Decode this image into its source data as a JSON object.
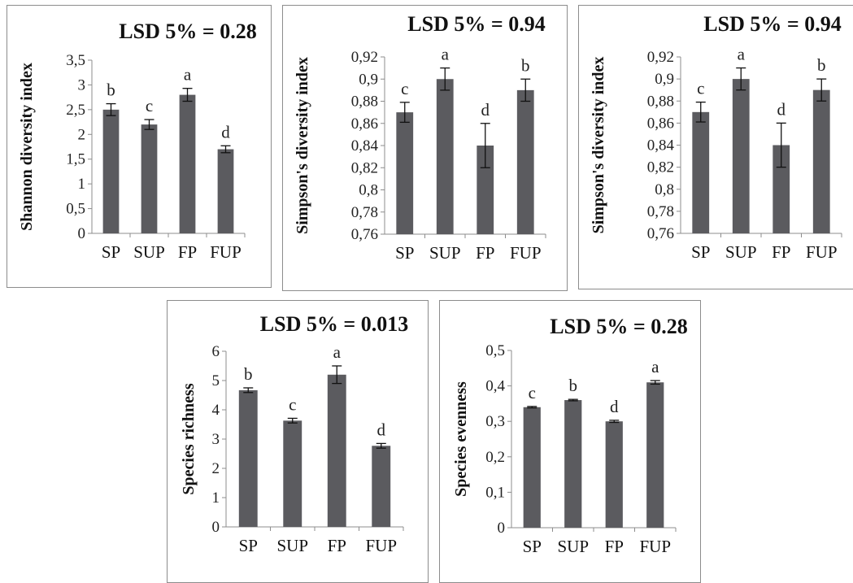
{
  "colors": {
    "bar": "#5b5b5f",
    "axis": "#8c8c8c",
    "text": "#111111"
  },
  "chart_data": [
    {
      "type": "bar",
      "title": "LSD 5% =  0.28",
      "ylabel": "Shannon diversity index",
      "categories": [
        "SP",
        "SUP",
        "FP",
        "FUP"
      ],
      "values": [
        2.5,
        2.2,
        2.8,
        1.7
      ],
      "errors": [
        0.12,
        0.1,
        0.13,
        0.07
      ],
      "letters": [
        "b",
        "c",
        "a",
        "d"
      ],
      "ylim": [
        0,
        3.5
      ],
      "yticks": [
        "0",
        "0,5",
        "1",
        "1,5",
        "2",
        "2,5",
        "3",
        "3,5"
      ]
    },
    {
      "type": "bar",
      "title": "LSD 5% =  0.94",
      "ylabel": "Simpson's diversity index",
      "categories": [
        "SP",
        "SUP",
        "FP",
        "FUP"
      ],
      "values": [
        0.87,
        0.9,
        0.84,
        0.89
      ],
      "errors": [
        0.009,
        0.01,
        0.02,
        0.01
      ],
      "letters": [
        "c",
        "a",
        "d",
        "b"
      ],
      "ylim": [
        0.76,
        0.92
      ],
      "yticks": [
        "0,76",
        "0,78",
        "0,8",
        "0,82",
        "0,84",
        "0,86",
        "0,88",
        "0,9",
        "0,92"
      ]
    },
    {
      "type": "bar",
      "title": "LSD 5% =  0.94",
      "ylabel": "Simpson's diversity index",
      "categories": [
        "SP",
        "SUP",
        "FP",
        "FUP"
      ],
      "values": [
        0.87,
        0.9,
        0.84,
        0.89
      ],
      "errors": [
        0.009,
        0.01,
        0.02,
        0.01
      ],
      "letters": [
        "c",
        "a",
        "d",
        "b"
      ],
      "ylim": [
        0.76,
        0.92
      ],
      "yticks": [
        "0,76",
        "0,78",
        "0,8",
        "0,82",
        "0,84",
        "0,86",
        "0,88",
        "0,9",
        "0,92"
      ]
    },
    {
      "type": "bar",
      "title": "LSD 5% =  0.013",
      "ylabel": "Species  richness",
      "categories": [
        "SP",
        "SUP",
        "FP",
        "FUP"
      ],
      "values": [
        4.67,
        3.63,
        5.2,
        2.77
      ],
      "errors": [
        0.08,
        0.08,
        0.3,
        0.08
      ],
      "letters": [
        "b",
        "c",
        "a",
        "d"
      ],
      "ylim": [
        0,
        6
      ],
      "yticks": [
        "0",
        "1",
        "2",
        "3",
        "4",
        "5",
        "6"
      ]
    },
    {
      "type": "bar",
      "title": "LSD 5% =  0.28",
      "ylabel": "Species evenness",
      "categories": [
        "SP",
        "SUP",
        "FP",
        "FUP"
      ],
      "values": [
        0.34,
        0.36,
        0.3,
        0.41
      ],
      "errors": [
        0.002,
        0.002,
        0.003,
        0.005
      ],
      "letters": [
        "c",
        "b",
        "d",
        "a"
      ],
      "ylim": [
        0,
        0.5
      ],
      "yticks": [
        "0",
        "0,1",
        "0,2",
        "0,3",
        "0,4",
        "0,5"
      ]
    }
  ]
}
